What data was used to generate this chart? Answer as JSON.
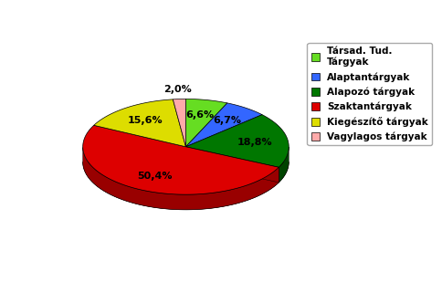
{
  "labels": [
    "Társad. Tud.\nTárgyak",
    "Alaptantárgyak",
    "Alapozó tárgyak",
    "Szaktantárgyak",
    "Kiegészítő tárgyak",
    "Vagylagos tárgyak"
  ],
  "values": [
    6.6,
    6.7,
    18.8,
    50.4,
    15.6,
    2.0
  ],
  "colors": [
    "#66dd22",
    "#3366ff",
    "#007700",
    "#dd0000",
    "#dddd00",
    "#ffaaaa"
  ],
  "dark_colors": [
    "#449911",
    "#1144cc",
    "#004400",
    "#990000",
    "#999900",
    "#cc7777"
  ],
  "legend_labels": [
    "Társad. Tud.\nTárgyak",
    "Alaptantárgyak",
    "Alapozó tárgyak",
    "Szaktantárgyak",
    "Kiegészítő tárgyak",
    "Vagylagos tárgyak"
  ],
  "pct_labels": [
    "6,6%",
    "6,7%",
    "18,8%",
    "50,4%",
    "15,6%",
    "2,0%"
  ],
  "background_color": "#f0f0f0"
}
